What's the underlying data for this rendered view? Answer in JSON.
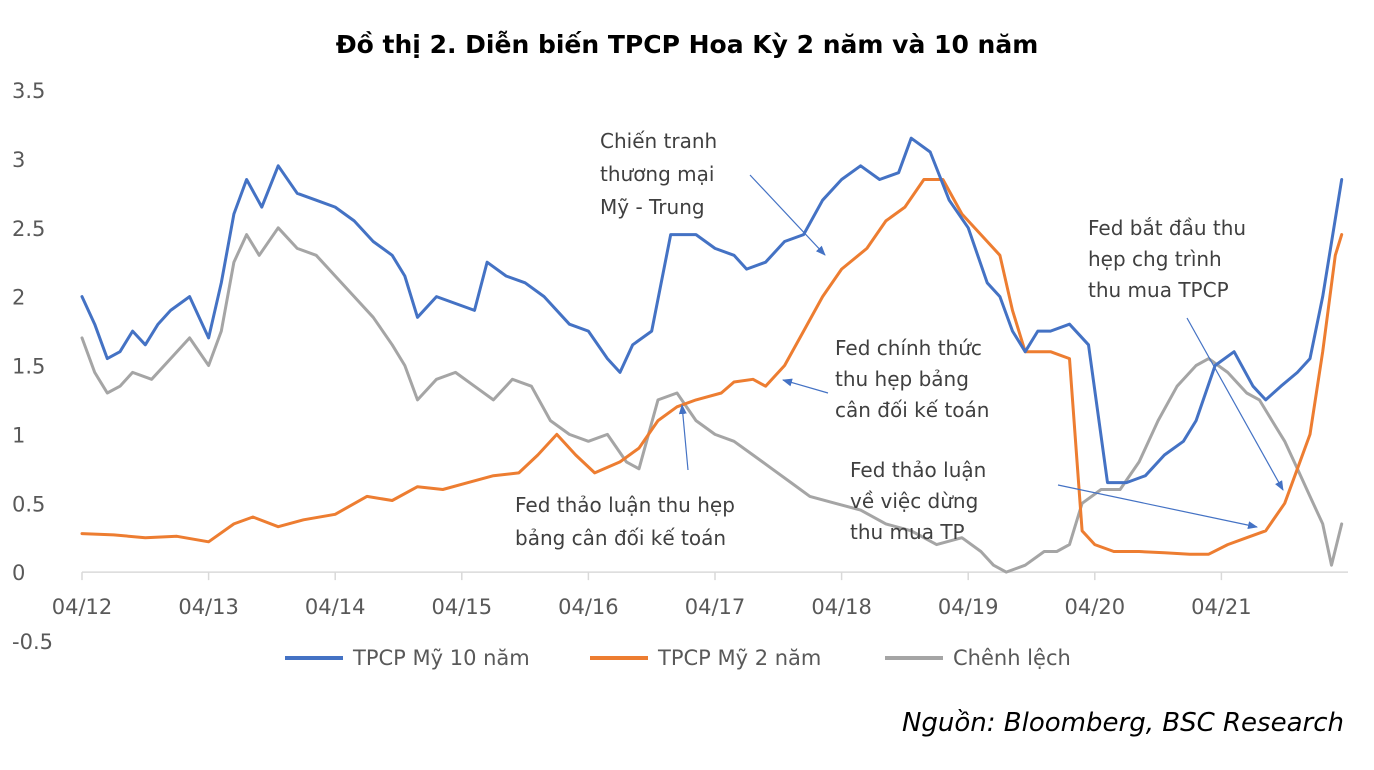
{
  "chart_data": {
    "type": "line",
    "title": "Đồ thị 2.  Diễn biến TPCP Hoa Kỳ 2 năm và 10 năm",
    "source": "Nguồn: Bloomberg, BSC Research",
    "xlabel": "",
    "ylabel": "",
    "ylim": [
      -0.5,
      3.5
    ],
    "yticks": [
      "3.5",
      "3",
      "2.5",
      "2",
      "1.5",
      "1",
      "0.5",
      "0",
      "-0.5"
    ],
    "xticks": [
      "04/12",
      "04/13",
      "04/14",
      "04/15",
      "04/16",
      "04/17",
      "04/18",
      "04/19",
      "04/20",
      "04/21"
    ],
    "xlim": [
      2012.25,
      2022.25
    ],
    "grid": false,
    "legend_position": "bottom",
    "series": [
      {
        "name": "TPCP Mỹ 10 năm",
        "color": "#4472c4",
        "x": [
          2012.25,
          2012.35,
          2012.45,
          2012.55,
          2012.65,
          2012.75,
          2012.85,
          2012.95,
          2013.1,
          2013.25,
          2013.35,
          2013.45,
          2013.55,
          2013.67,
          2013.8,
          2013.95,
          2014.1,
          2014.25,
          2014.4,
          2014.55,
          2014.7,
          2014.8,
          2014.9,
          2015.05,
          2015.2,
          2015.35,
          2015.45,
          2015.6,
          2015.75,
          2015.9,
          2016.1,
          2016.25,
          2016.4,
          2016.5,
          2016.6,
          2016.75,
          2016.9,
          2017.1,
          2017.25,
          2017.4,
          2017.5,
          2017.65,
          2017.8,
          2017.95,
          2018.1,
          2018.25,
          2018.4,
          2018.55,
          2018.7,
          2018.8,
          2018.95,
          2019.1,
          2019.25,
          2019.4,
          2019.5,
          2019.6,
          2019.7,
          2019.8,
          2019.9,
          2020.05,
          2020.2,
          2020.35,
          2020.5,
          2020.65,
          2020.8,
          2020.95,
          2021.05,
          2021.2,
          2021.35,
          2021.5,
          2021.6,
          2021.72,
          2021.85,
          2021.95,
          2022.05,
          2022.2
        ],
        "values": [
          2.0,
          1.8,
          1.55,
          1.6,
          1.75,
          1.65,
          1.8,
          1.9,
          2.0,
          1.7,
          2.1,
          2.6,
          2.85,
          2.65,
          2.95,
          2.75,
          2.7,
          2.65,
          2.55,
          2.4,
          2.3,
          2.15,
          1.85,
          2.0,
          1.95,
          1.9,
          2.25,
          2.15,
          2.1,
          2.0,
          1.8,
          1.75,
          1.55,
          1.45,
          1.65,
          1.75,
          2.45,
          2.45,
          2.35,
          2.3,
          2.2,
          2.25,
          2.4,
          2.45,
          2.7,
          2.85,
          2.95,
          2.85,
          2.9,
          3.15,
          3.05,
          2.7,
          2.5,
          2.1,
          2.0,
          1.75,
          1.6,
          1.75,
          1.75,
          1.8,
          1.65,
          0.65,
          0.65,
          0.7,
          0.85,
          0.95,
          1.1,
          1.5,
          1.6,
          1.35,
          1.25,
          1.35,
          1.45,
          1.55,
          2.0,
          2.85
        ]
      },
      {
        "name": "TPCP Mỹ 2 năm",
        "color": "#ed7d31",
        "x": [
          2012.25,
          2012.5,
          2012.75,
          2013.0,
          2013.25,
          2013.45,
          2013.6,
          2013.8,
          2014.0,
          2014.25,
          2014.5,
          2014.7,
          2014.9,
          2015.1,
          2015.3,
          2015.5,
          2015.7,
          2015.85,
          2016.0,
          2016.15,
          2016.3,
          2016.5,
          2016.65,
          2016.8,
          2016.95,
          2017.1,
          2017.3,
          2017.4,
          2017.55,
          2017.65,
          2017.8,
          2017.95,
          2018.1,
          2018.25,
          2018.45,
          2018.6,
          2018.75,
          2018.9,
          2019.05,
          2019.2,
          2019.35,
          2019.5,
          2019.6,
          2019.7,
          2019.8,
          2019.9,
          2020.05,
          2020.15,
          2020.25,
          2020.4,
          2020.6,
          2020.8,
          2021.0,
          2021.15,
          2021.3,
          2021.45,
          2021.6,
          2021.75,
          2021.85,
          2021.95,
          2022.05,
          2022.15,
          2022.2
        ],
        "values": [
          0.28,
          0.27,
          0.25,
          0.26,
          0.22,
          0.35,
          0.4,
          0.33,
          0.38,
          0.42,
          0.55,
          0.52,
          0.62,
          0.6,
          0.65,
          0.7,
          0.72,
          0.85,
          1.0,
          0.85,
          0.72,
          0.8,
          0.9,
          1.1,
          1.2,
          1.25,
          1.3,
          1.38,
          1.4,
          1.35,
          1.5,
          1.75,
          2.0,
          2.2,
          2.35,
          2.55,
          2.65,
          2.85,
          2.85,
          2.6,
          2.45,
          2.3,
          1.9,
          1.6,
          1.6,
          1.6,
          1.55,
          0.3,
          0.2,
          0.15,
          0.15,
          0.14,
          0.13,
          0.13,
          0.2,
          0.25,
          0.3,
          0.5,
          0.75,
          1.0,
          1.6,
          2.3,
          2.45
        ]
      },
      {
        "name": "Chênh lệch",
        "color": "#a5a5a5",
        "x": [
          2012.25,
          2012.35,
          2012.45,
          2012.55,
          2012.65,
          2012.8,
          2012.95,
          2013.1,
          2013.25,
          2013.35,
          2013.45,
          2013.55,
          2013.65,
          2013.8,
          2013.95,
          2014.1,
          2014.25,
          2014.4,
          2014.55,
          2014.7,
          2014.8,
          2014.9,
          2015.05,
          2015.2,
          2015.35,
          2015.5,
          2015.65,
          2015.8,
          2015.95,
          2016.1,
          2016.25,
          2016.4,
          2016.55,
          2016.65,
          2016.8,
          2016.95,
          2017.1,
          2017.25,
          2017.4,
          2017.55,
          2017.7,
          2017.85,
          2018.0,
          2018.2,
          2018.4,
          2018.6,
          2018.8,
          2019.0,
          2019.2,
          2019.35,
          2019.45,
          2019.55,
          2019.7,
          2019.85,
          2019.95,
          2020.05,
          2020.15,
          2020.3,
          2020.45,
          2020.6,
          2020.75,
          2020.9,
          2021.05,
          2021.15,
          2021.3,
          2021.45,
          2021.55,
          2021.65,
          2021.75,
          2021.85,
          2021.95,
          2022.05,
          2022.12,
          2022.2
        ],
        "values": [
          1.7,
          1.45,
          1.3,
          1.35,
          1.45,
          1.4,
          1.55,
          1.7,
          1.5,
          1.75,
          2.25,
          2.45,
          2.3,
          2.5,
          2.35,
          2.3,
          2.15,
          2.0,
          1.85,
          1.65,
          1.5,
          1.25,
          1.4,
          1.45,
          1.35,
          1.25,
          1.4,
          1.35,
          1.1,
          1.0,
          0.95,
          1.0,
          0.8,
          0.75,
          1.25,
          1.3,
          1.1,
          1.0,
          0.95,
          0.85,
          0.75,
          0.65,
          0.55,
          0.5,
          0.45,
          0.35,
          0.3,
          0.2,
          0.25,
          0.15,
          0.05,
          0.0,
          0.05,
          0.15,
          0.15,
          0.2,
          0.5,
          0.6,
          0.6,
          0.8,
          1.1,
          1.35,
          1.5,
          1.55,
          1.45,
          1.3,
          1.25,
          1.1,
          0.95,
          0.75,
          0.55,
          0.35,
          0.05,
          0.35
        ]
      }
    ],
    "annotations": [
      {
        "lines": [
          "Chiến tranh",
          "thương mại",
          "Mỹ - Trung"
        ]
      },
      {
        "lines": [
          "Fed chính thức",
          "thu hẹp bảng",
          "cân đối kế toán"
        ]
      },
      {
        "lines": [
          "Fed thảo luận thu hẹp",
          "bảng cân đối kế toán"
        ]
      },
      {
        "lines": [
          "Fed thảo luận",
          "về việc dừng",
          "thu mua TP"
        ]
      },
      {
        "lines": [
          "Fed bắt đầu thu",
          "hẹp chg trình",
          "thu mua TPCP"
        ]
      }
    ]
  }
}
